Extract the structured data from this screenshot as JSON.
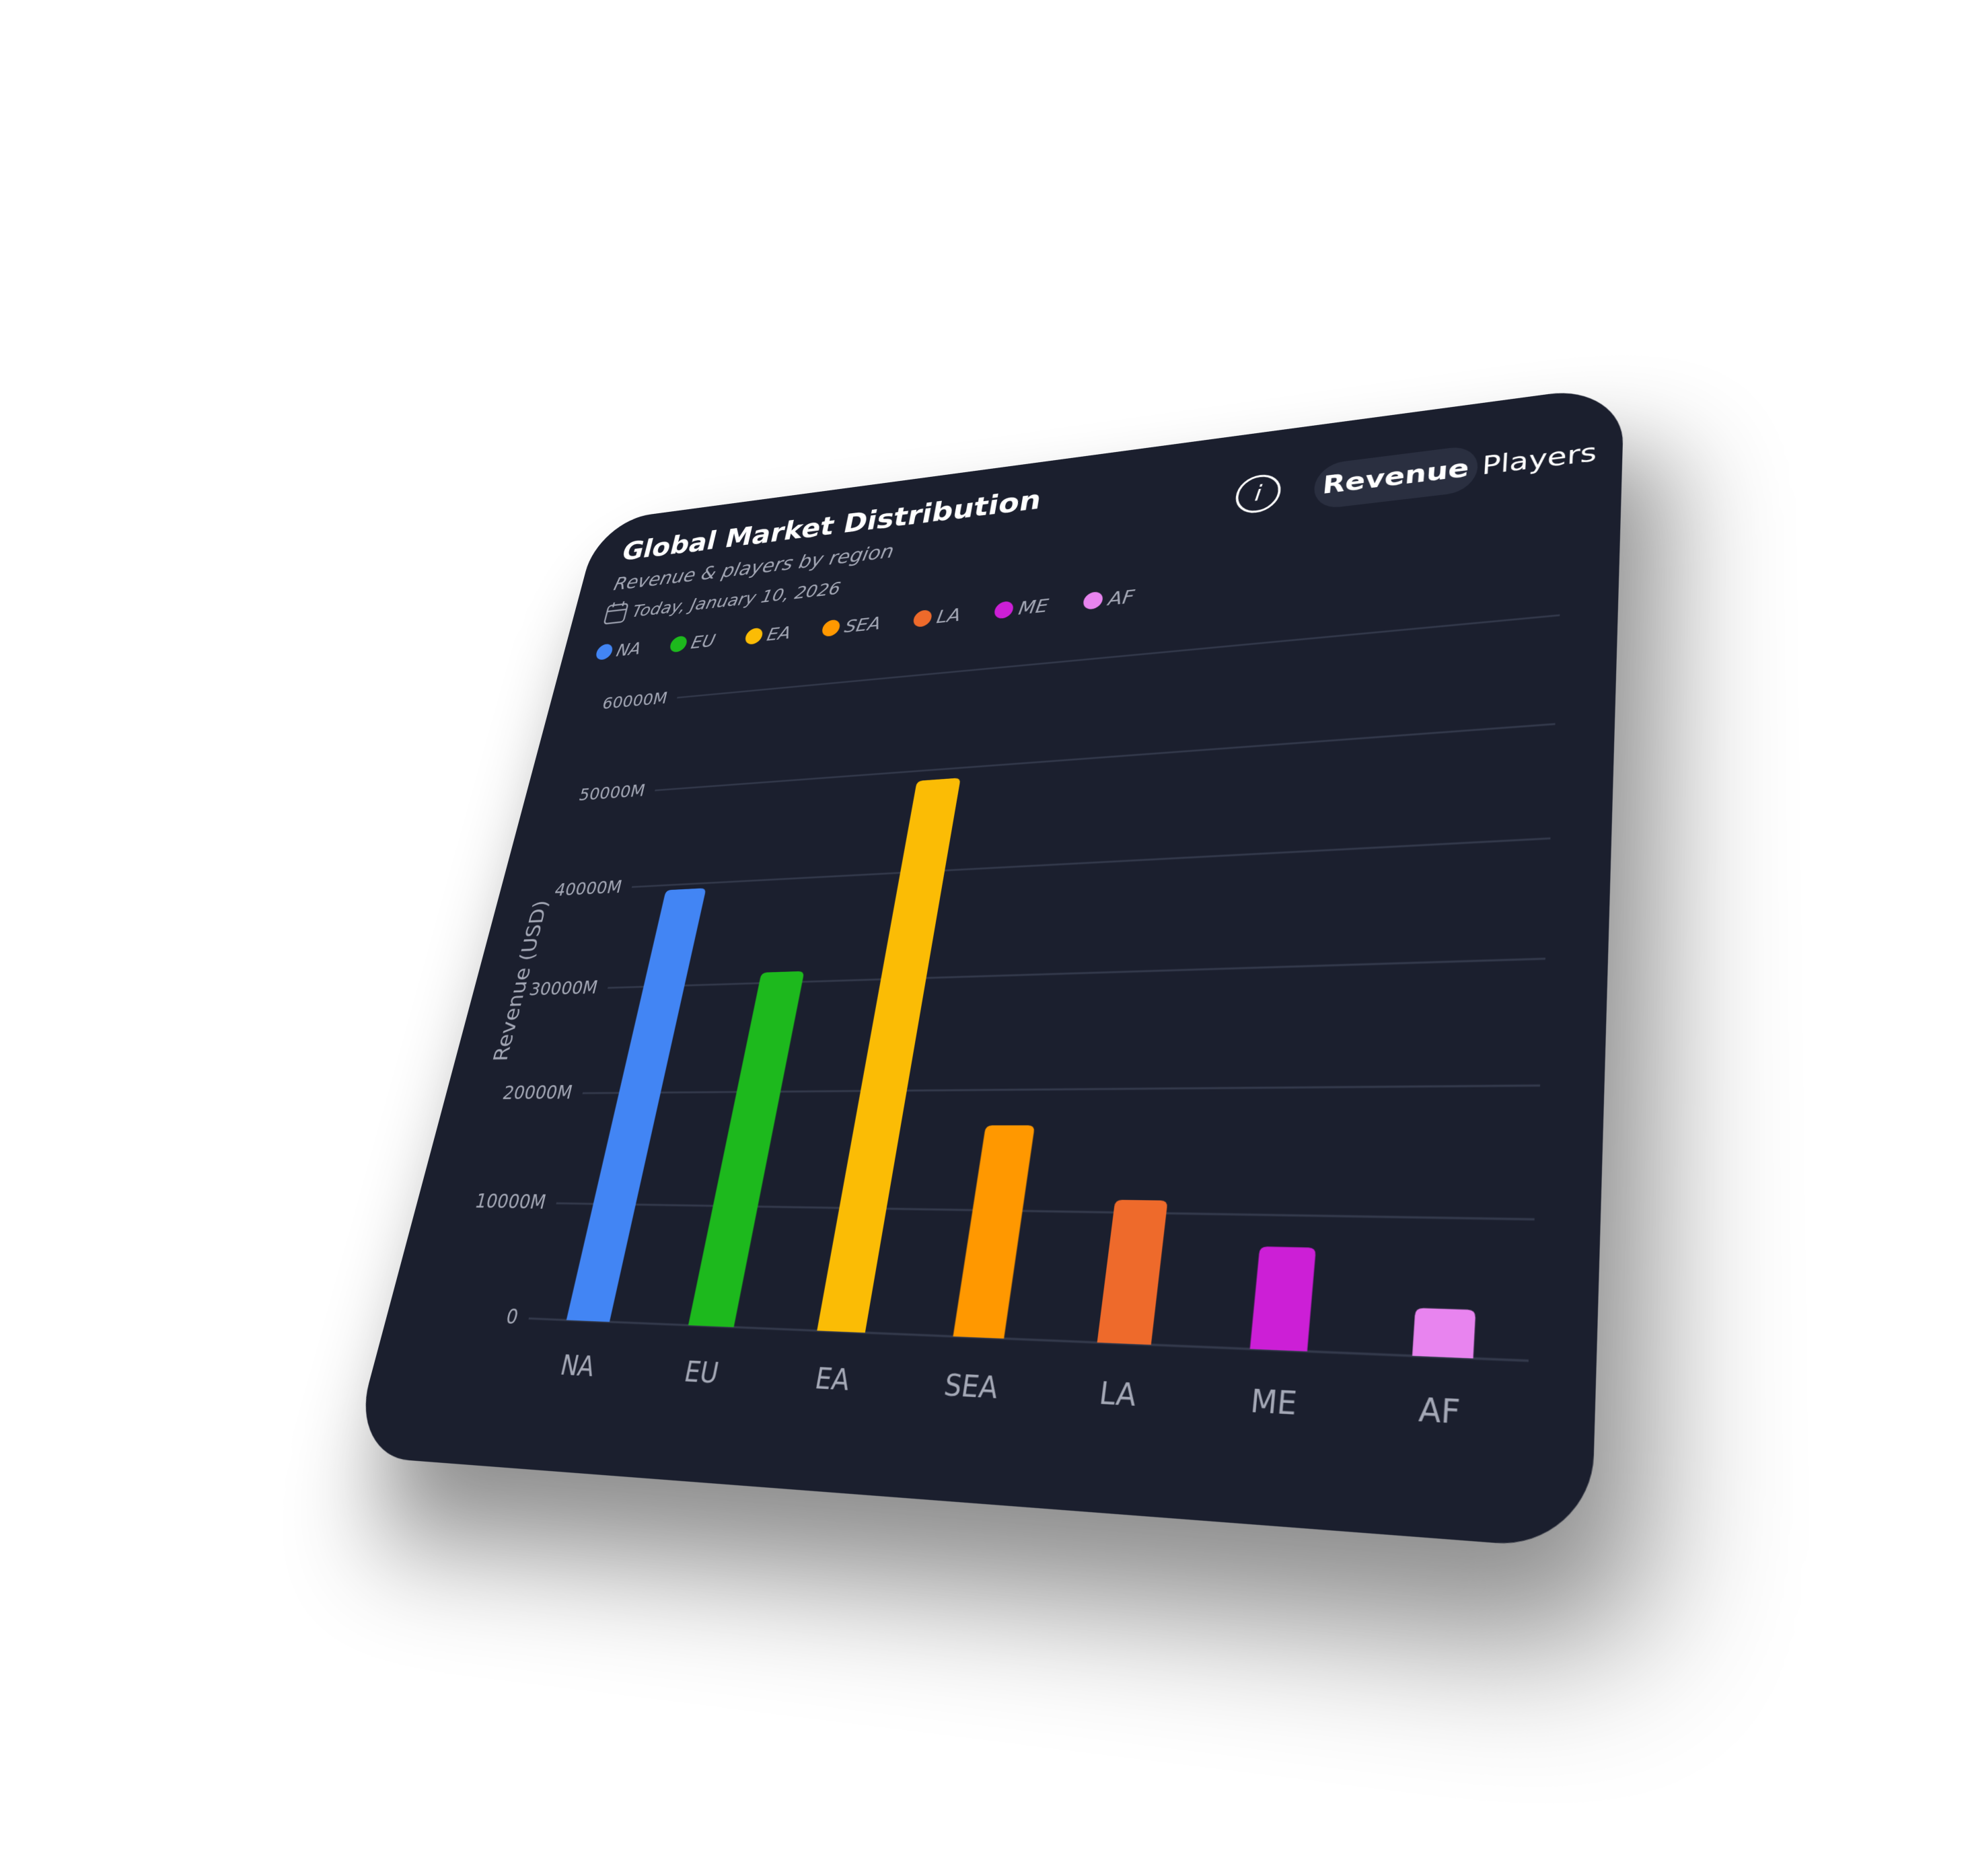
{
  "chart_data": {
    "type": "bar",
    "title": "Global Market Distribution",
    "subtitle": "Revenue & players by region",
    "annotation": "Today, January 10, 2026",
    "ylabel": "Revenue (USD)",
    "categories": [
      "NA",
      "EU",
      "EA",
      "SEA",
      "LA",
      "ME",
      "AF"
    ],
    "values": [
      39500,
      31000,
      49000,
      17000,
      11000,
      7600,
      3400
    ],
    "colors": [
      "#4285f4",
      "#1db91d",
      "#fbbc05",
      "#ff9800",
      "#ee6a2b",
      "#cc1fd6",
      "#e884ef"
    ],
    "ylim": [
      0,
      60000
    ],
    "yticks": [
      0,
      {
        "value": 10000,
        "label": "10000M"
      },
      {
        "value": 20000,
        "label": "20000M"
      },
      {
        "value": 30000,
        "label": "30000M"
      },
      {
        "value": 40000,
        "label": "40000M"
      },
      {
        "value": 50000,
        "label": "50000M"
      },
      {
        "value": 60000,
        "label": "60000M"
      }
    ],
    "grid": true
  },
  "controls": {
    "tabs": [
      "Revenue",
      "Players"
    ]
  }
}
